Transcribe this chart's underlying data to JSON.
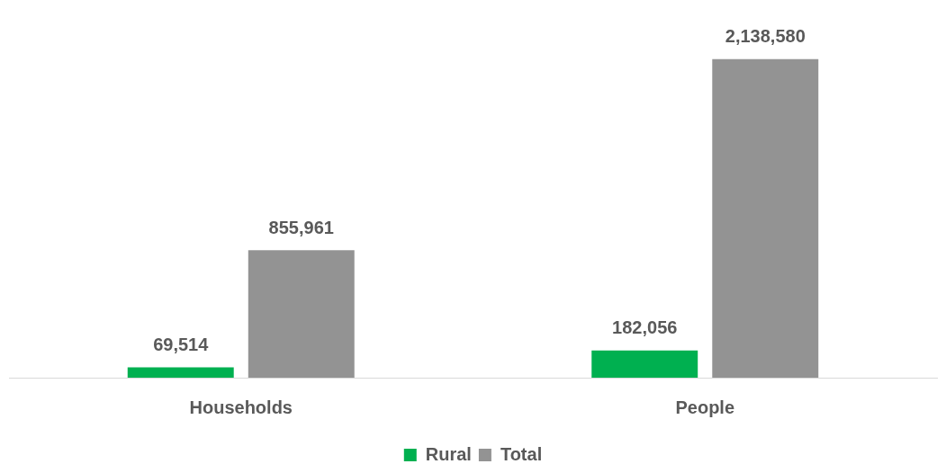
{
  "chart_data": {
    "type": "bar",
    "categories": [
      "Households",
      "People"
    ],
    "series": [
      {
        "name": "Rural",
        "color": "#00b050",
        "values": [
          69514,
          182056
        ],
        "value_labels": [
          "69,514",
          "182,056"
        ]
      },
      {
        "name": "Total",
        "color": "#939393",
        "values": [
          855961,
          2138580
        ],
        "value_labels": [
          "855,961",
          "2,138,580"
        ]
      }
    ],
    "legend": "bottom",
    "grid": false
  }
}
